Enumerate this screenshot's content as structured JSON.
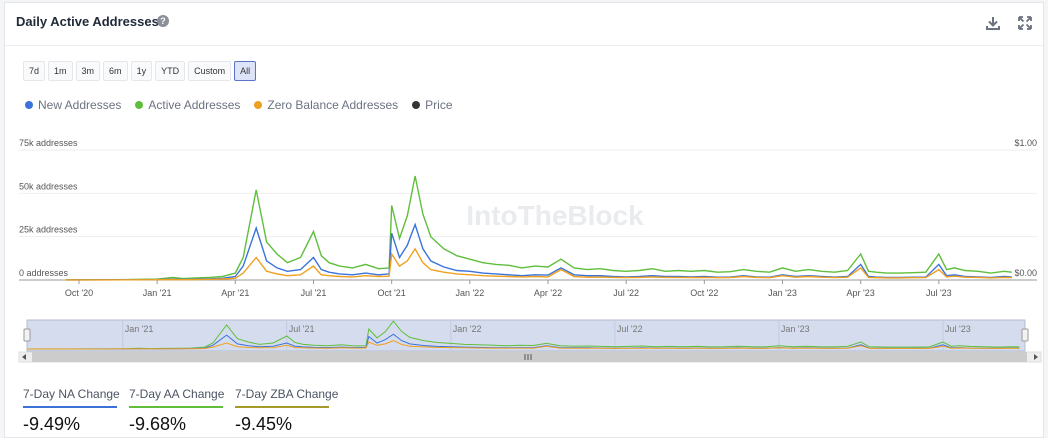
{
  "header": {
    "title": "Daily Active Addresses",
    "help_icon": "question-circle-icon",
    "download_icon": "download-icon",
    "expand_icon": "expand-icon"
  },
  "ranges": {
    "items": [
      "7d",
      "1m",
      "3m",
      "6m",
      "1y",
      "YTD",
      "Custom",
      "All"
    ],
    "active": "All"
  },
  "legend": [
    {
      "label": "New Addresses",
      "color": "#3b73db"
    },
    {
      "label": "Active Addresses",
      "color": "#5fbf3c"
    },
    {
      "label": "Zero Balance Addresses",
      "color": "#f0a020"
    },
    {
      "label": "Price",
      "color": "#333333"
    }
  ],
  "watermark": "IntoTheBlock",
  "chart_data": {
    "type": "line",
    "title": "Daily Active Addresses",
    "xlim": [
      0,
      36
    ],
    "x_ticks": [
      {
        "x": 0,
        "label": "Oct '20"
      },
      {
        "x": 3,
        "label": "Jan '21"
      },
      {
        "x": 6,
        "label": "Apr '21"
      },
      {
        "x": 9,
        "label": "Jul '21"
      },
      {
        "x": 12,
        "label": "Oct '21"
      },
      {
        "x": 15,
        "label": "Jan '22"
      },
      {
        "x": 18,
        "label": "Apr '22"
      },
      {
        "x": 21,
        "label": "Jul '22"
      },
      {
        "x": 24,
        "label": "Oct '22"
      },
      {
        "x": 27,
        "label": "Jan '23"
      },
      {
        "x": 30,
        "label": "Apr '23"
      },
      {
        "x": 33,
        "label": "Jul '23"
      }
    ],
    "y_left": {
      "ylim": [
        0,
        75000
      ],
      "ticks": [
        0,
        25000,
        50000,
        75000
      ],
      "tick_labels": [
        "0 addresses",
        "25k addresses",
        "50k addresses",
        "75k addresses"
      ]
    },
    "y_right": {
      "ylim": [
        0,
        1
      ],
      "ticks": [
        0,
        1
      ],
      "tick_labels": [
        "$0.00",
        "$1.00"
      ]
    },
    "series": [
      {
        "name": "Active Addresses",
        "color": "#5fbf3c",
        "x": [
          -0.5,
          0,
          1,
          2,
          3,
          3.6,
          4,
          4.5,
          5,
          5.5,
          6,
          6.3,
          6.8,
          7.2,
          7.6,
          8,
          8.5,
          9,
          9.3,
          9.6,
          10,
          10.5,
          11,
          11.5,
          11.9,
          12,
          12.3,
          12.6,
          12.9,
          13.2,
          13.5,
          14,
          14.5,
          15,
          15.5,
          16,
          16.5,
          17,
          17.5,
          18,
          18.5,
          19,
          19.5,
          20,
          20.5,
          21,
          21.5,
          22,
          22.5,
          23,
          23.5,
          24,
          24.5,
          25,
          25.5,
          26,
          26.5,
          27,
          27.5,
          28,
          28.5,
          29,
          29.5,
          30,
          30.3,
          30.6,
          31,
          31.5,
          32,
          32.5,
          33,
          33.3,
          33.6,
          34,
          34.5,
          35,
          35.5,
          35.8
        ],
        "values": [
          100,
          150,
          200,
          300,
          500,
          1500,
          800,
          1200,
          1500,
          2000,
          4000,
          13000,
          52000,
          22000,
          15000,
          10000,
          13000,
          28000,
          14000,
          10000,
          8000,
          7000,
          9000,
          6500,
          7000,
          43000,
          24000,
          37000,
          60000,
          38000,
          25000,
          18000,
          14000,
          12000,
          10000,
          9000,
          8500,
          7000,
          8000,
          7500,
          12000,
          7000,
          6000,
          6500,
          5500,
          5000,
          5500,
          6500,
          5000,
          5500,
          5000,
          5500,
          4500,
          4800,
          6000,
          5000,
          4500,
          7000,
          5000,
          6000,
          5000,
          4500,
          5500,
          15000,
          5000,
          4500,
          4000,
          4000,
          4200,
          4500,
          15000,
          6000,
          7000,
          5500,
          5000,
          4000,
          5000,
          4500
        ]
      },
      {
        "name": "New Addresses",
        "color": "#3b73db",
        "x": [
          -0.5,
          0,
          1,
          2,
          3,
          3.6,
          4,
          4.5,
          5,
          5.5,
          6,
          6.3,
          6.8,
          7.2,
          7.6,
          8,
          8.5,
          9,
          9.3,
          9.6,
          10,
          10.5,
          11,
          11.5,
          11.9,
          12,
          12.3,
          12.6,
          12.9,
          13.2,
          13.5,
          14,
          14.5,
          15,
          15.5,
          16,
          16.5,
          17,
          17.5,
          18,
          18.5,
          19,
          19.5,
          20,
          20.5,
          21,
          21.5,
          22,
          22.5,
          23,
          23.5,
          24,
          24.5,
          25,
          25.5,
          26,
          26.5,
          27,
          27.5,
          28,
          28.5,
          29,
          29.5,
          30,
          30.3,
          30.6,
          31,
          31.5,
          32,
          32.5,
          33,
          33.3,
          33.6,
          34,
          34.5,
          35,
          35.5,
          35.8
        ],
        "values": [
          50,
          80,
          100,
          150,
          250,
          500,
          300,
          500,
          700,
          1000,
          2000,
          8000,
          30000,
          11000,
          7000,
          5000,
          6000,
          13000,
          6000,
          4500,
          3500,
          3000,
          4000,
          3000,
          3500,
          27000,
          13000,
          20000,
          32000,
          18000,
          11000,
          7500,
          5500,
          5000,
          4000,
          3500,
          3000,
          2500,
          3000,
          2800,
          7000,
          3000,
          2500,
          2500,
          2000,
          1800,
          2000,
          2500,
          2000,
          2000,
          1800,
          2000,
          1600,
          1700,
          2500,
          1800,
          1600,
          3000,
          2000,
          2500,
          2000,
          1700,
          2000,
          9000,
          2000,
          1700,
          1500,
          1500,
          1600,
          1700,
          9000,
          2500,
          3000,
          2000,
          1800,
          1500,
          2000,
          1800
        ]
      },
      {
        "name": "Zero Balance Addresses",
        "color": "#f0a020",
        "x": [
          -0.5,
          0,
          1,
          2,
          3,
          3.6,
          4,
          4.5,
          5,
          5.5,
          6,
          6.3,
          6.8,
          7.2,
          7.6,
          8,
          8.5,
          9,
          9.3,
          9.6,
          10,
          10.5,
          11,
          11.5,
          11.9,
          12,
          12.3,
          12.6,
          12.9,
          13.2,
          13.5,
          14,
          14.5,
          15,
          15.5,
          16,
          16.5,
          17,
          17.5,
          18,
          18.5,
          19,
          19.5,
          20,
          20.5,
          21,
          21.5,
          22,
          22.5,
          23,
          23.5,
          24,
          24.5,
          25,
          25.5,
          26,
          26.5,
          27,
          27.5,
          28,
          28.5,
          29,
          29.5,
          30,
          30.3,
          30.6,
          31,
          31.5,
          32,
          32.5,
          33,
          33.3,
          33.6,
          34,
          34.5,
          35,
          35.5,
          35.8
        ],
        "values": [
          30,
          50,
          60,
          100,
          150,
          300,
          200,
          300,
          400,
          600,
          1000,
          4000,
          13000,
          5000,
          3500,
          2500,
          3000,
          8000,
          3000,
          2500,
          2000,
          1800,
          2500,
          2000,
          2200,
          15000,
          8000,
          11000,
          18000,
          10000,
          6000,
          4500,
          3500,
          3000,
          2500,
          2200,
          2000,
          1800,
          2000,
          1800,
          6000,
          2000,
          1600,
          1700,
          1500,
          1400,
          1500,
          1800,
          1500,
          1500,
          1400,
          1500,
          1300,
          1400,
          2000,
          1500,
          1300,
          2500,
          1600,
          2000,
          1600,
          1400,
          1600,
          7000,
          1500,
          1300,
          1200,
          1200,
          1300,
          1400,
          6000,
          1800,
          2200,
          1600,
          1500,
          1200,
          1500,
          1400
        ]
      }
    ],
    "navigator": {
      "tick_labels": [
        "Jan '21",
        "Jul '21",
        "Jan '22",
        "Jul '22",
        "Jan '23",
        "Jul '23"
      ],
      "tick_x": [
        3,
        9,
        15,
        21,
        27,
        33
      ]
    }
  },
  "stats": [
    {
      "label": "7-Day NA Change",
      "value": "-9.49%",
      "color": "#3b73db"
    },
    {
      "label": "7-Day AA Change",
      "value": "-9.68%",
      "color": "#5fbf3c"
    },
    {
      "label": "7-Day ZBA Change",
      "value": "-9.45%",
      "color": "#a39a2a"
    }
  ]
}
